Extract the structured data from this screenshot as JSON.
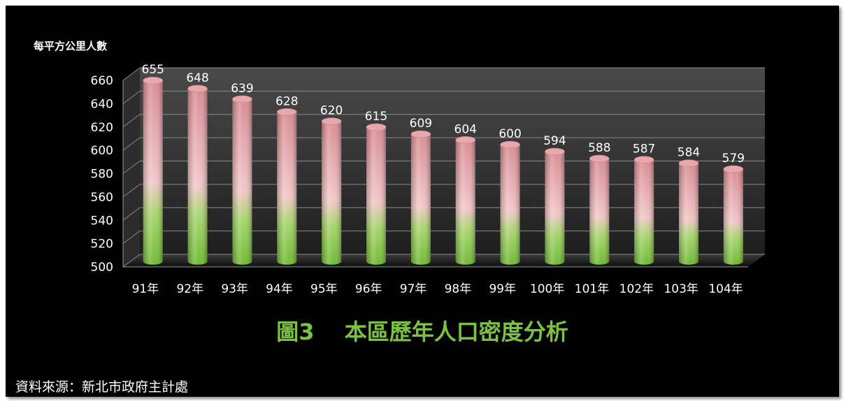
{
  "chart_data": {
    "type": "bar",
    "title": "圖3　 本區歷年人口密度分析",
    "ylabel": "每平方公里人數",
    "xlabel": "",
    "ylim": [
      500,
      660
    ],
    "yticks": [
      500,
      520,
      540,
      560,
      580,
      600,
      620,
      640,
      660
    ],
    "categories": [
      "91年",
      "92年",
      "93年",
      "94年",
      "95年",
      "96年",
      "97年",
      "98年",
      "99年",
      "100年",
      "101年",
      "102年",
      "103年",
      "104年"
    ],
    "values": [
      655,
      648,
      639,
      628,
      620,
      615,
      609,
      604,
      600,
      594,
      588,
      587,
      584,
      579
    ],
    "style": "3d-cylinder",
    "grid": true,
    "legend": "none",
    "colors": {
      "top": "#d88f94",
      "mid": "#f2c6c8",
      "bottom": "#7cc242",
      "title": "#7cc242"
    }
  },
  "source": "資料來源：新北市政府主計處"
}
